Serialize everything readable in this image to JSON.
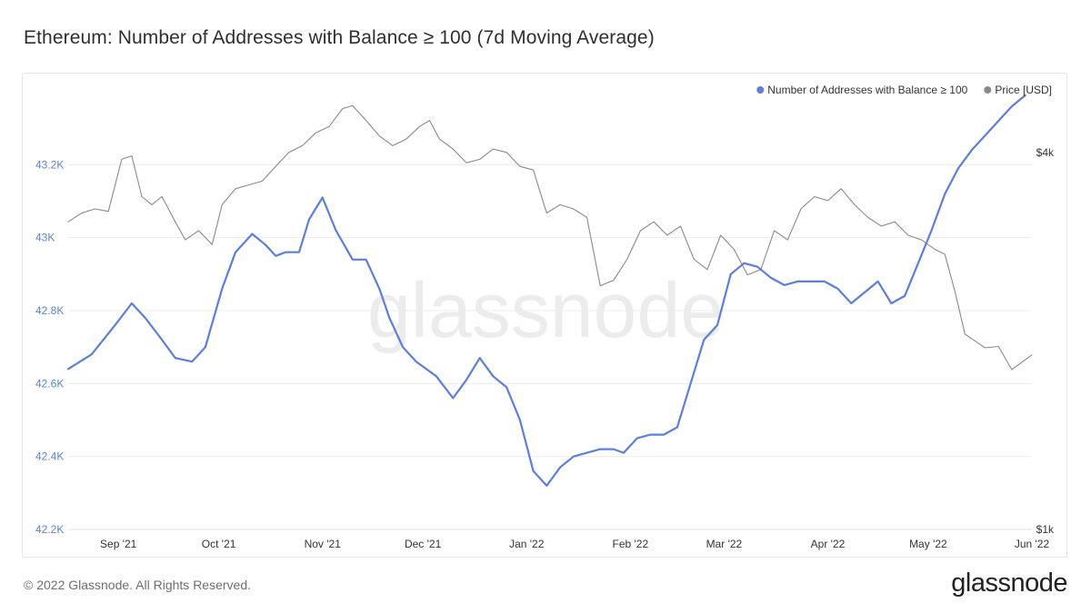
{
  "title": "Ethereum: Number of Addresses with Balance ≥ 100 (7d Moving Average)",
  "watermark": "glassnode",
  "footer": {
    "copyright": "© 2022 Glassnode. All Rights Reserved.",
    "logo": "glassnode"
  },
  "colors": {
    "addresses": "#5b7fdb",
    "price": "#8a8a8a",
    "grid": "#ececec",
    "left_axis_text": "#5b7fdb",
    "right_axis_text": "#333333"
  },
  "chart_data": {
    "type": "line",
    "legend_position": "top-right",
    "grid": true,
    "x_ticks": [
      "Sep '21",
      "Oct '21",
      "Nov '21",
      "Dec '21",
      "Jan '22",
      "Feb '22",
      "Mar '22",
      "Apr '22",
      "May '22",
      "Jun '22"
    ],
    "x_tick_dates": [
      "2021-09-01",
      "2021-10-01",
      "2021-11-01",
      "2021-12-01",
      "2022-01-01",
      "2022-02-01",
      "2022-03-01",
      "2022-04-01",
      "2022-05-01",
      "2022-06-01"
    ],
    "x_range": [
      "2021-08-17",
      "2022-06-01"
    ],
    "y_left": {
      "ticks": [
        "42.2K",
        "42.4K",
        "42.6K",
        "42.8K",
        "43K",
        "43.2K"
      ],
      "tick_values": [
        42200,
        42400,
        42600,
        42800,
        43000,
        43200
      ],
      "range": [
        42200,
        43400
      ]
    },
    "y_right": {
      "scale": "log",
      "ticks": [
        "$1k",
        "$4k"
      ],
      "tick_values": [
        1000,
        4000
      ],
      "range": [
        1000,
        5000
      ]
    },
    "series": [
      {
        "name": "Number of Addresses with Balance ≥ 100",
        "axis": "left",
        "x": [
          "2021-08-17",
          "2021-08-24",
          "2021-08-31",
          "2021-09-05",
          "2021-09-09",
          "2021-09-14",
          "2021-09-18",
          "2021-09-23",
          "2021-09-27",
          "2021-10-02",
          "2021-10-06",
          "2021-10-11",
          "2021-10-15",
          "2021-10-18",
          "2021-10-21",
          "2021-10-25",
          "2021-10-28",
          "2021-11-01",
          "2021-11-05",
          "2021-11-10",
          "2021-11-14",
          "2021-11-18",
          "2021-11-21",
          "2021-11-25",
          "2021-11-29",
          "2021-12-02",
          "2021-12-05",
          "2021-12-10",
          "2021-12-14",
          "2021-12-18",
          "2021-12-22",
          "2021-12-26",
          "2021-12-30",
          "2022-01-03",
          "2022-01-07",
          "2022-01-11",
          "2022-01-15",
          "2022-01-19",
          "2022-01-23",
          "2022-01-27",
          "2022-01-30",
          "2022-02-03",
          "2022-02-07",
          "2022-02-11",
          "2022-02-15",
          "2022-02-19",
          "2022-02-23",
          "2022-02-27",
          "2022-03-03",
          "2022-03-07",
          "2022-03-11",
          "2022-03-15",
          "2022-03-19",
          "2022-03-23",
          "2022-03-27",
          "2022-03-31",
          "2022-04-04",
          "2022-04-08",
          "2022-04-12",
          "2022-04-16",
          "2022-04-20",
          "2022-04-24",
          "2022-04-28",
          "2022-05-02",
          "2022-05-06",
          "2022-05-10",
          "2022-05-14",
          "2022-05-18",
          "2022-05-22",
          "2022-05-26",
          "2022-05-30"
        ],
        "values": [
          42640,
          42680,
          42760,
          42820,
          42780,
          42720,
          42670,
          42660,
          42700,
          42860,
          42960,
          43010,
          42980,
          42950,
          42960,
          42960,
          43050,
          43110,
          43020,
          42940,
          42940,
          42860,
          42780,
          42700,
          42660,
          42640,
          42620,
          42560,
          42610,
          42670,
          42620,
          42590,
          42500,
          42360,
          42320,
          42370,
          42400,
          42410,
          42420,
          42420,
          42410,
          42450,
          42460,
          42460,
          42480,
          42600,
          42720,
          42760,
          42900,
          42930,
          42920,
          42890,
          42870,
          42880,
          42880,
          42880,
          42860,
          42820,
          42850,
          42880,
          42820,
          42840,
          42930,
          43020,
          43120,
          43190,
          43240,
          43280,
          43320,
          43360,
          43390
        ]
      },
      {
        "name": "Price [USD]",
        "axis": "right",
        "x": [
          "2021-08-17",
          "2021-08-21",
          "2021-08-25",
          "2021-08-29",
          "2021-09-02",
          "2021-09-05",
          "2021-09-08",
          "2021-09-11",
          "2021-09-14",
          "2021-09-18",
          "2021-09-21",
          "2021-09-25",
          "2021-09-29",
          "2021-10-02",
          "2021-10-06",
          "2021-10-10",
          "2021-10-14",
          "2021-10-18",
          "2021-10-22",
          "2021-10-26",
          "2021-10-30",
          "2021-11-03",
          "2021-11-07",
          "2021-11-10",
          "2021-11-14",
          "2021-11-18",
          "2021-11-22",
          "2021-11-26",
          "2021-11-30",
          "2021-12-03",
          "2021-12-06",
          "2021-12-10",
          "2021-12-14",
          "2021-12-18",
          "2021-12-22",
          "2021-12-26",
          "2021-12-30",
          "2022-01-03",
          "2022-01-07",
          "2022-01-11",
          "2022-01-15",
          "2022-01-19",
          "2022-01-23",
          "2022-01-27",
          "2022-01-31",
          "2022-02-04",
          "2022-02-08",
          "2022-02-12",
          "2022-02-16",
          "2022-02-20",
          "2022-02-24",
          "2022-02-28",
          "2022-03-04",
          "2022-03-08",
          "2022-03-12",
          "2022-03-16",
          "2022-03-20",
          "2022-03-24",
          "2022-03-28",
          "2022-04-01",
          "2022-04-05",
          "2022-04-09",
          "2022-04-13",
          "2022-04-17",
          "2022-04-21",
          "2022-04-25",
          "2022-04-29",
          "2022-05-03",
          "2022-05-06",
          "2022-05-09",
          "2022-05-12",
          "2022-05-15",
          "2022-05-18",
          "2022-05-22",
          "2022-05-26",
          "2022-05-29",
          "2022-06-01"
        ],
        "values": [
          3100,
          3200,
          3250,
          3220,
          3900,
          3950,
          3400,
          3300,
          3400,
          3100,
          2900,
          3000,
          2850,
          3300,
          3500,
          3550,
          3600,
          3800,
          4000,
          4100,
          4300,
          4400,
          4700,
          4750,
          4500,
          4250,
          4100,
          4200,
          4400,
          4500,
          4200,
          4050,
          3850,
          3900,
          4050,
          4000,
          3800,
          3750,
          3200,
          3300,
          3250,
          3150,
          2450,
          2500,
          2700,
          3000,
          3100,
          2950,
          3050,
          2700,
          2600,
          2950,
          2800,
          2550,
          2600,
          3000,
          2900,
          3250,
          3400,
          3350,
          3500,
          3300,
          3150,
          3050,
          3100,
          2950,
          2900,
          2800,
          2750,
          2400,
          2050,
          2000,
          1950,
          1960,
          1800,
          1850,
          1900
        ]
      }
    ]
  }
}
